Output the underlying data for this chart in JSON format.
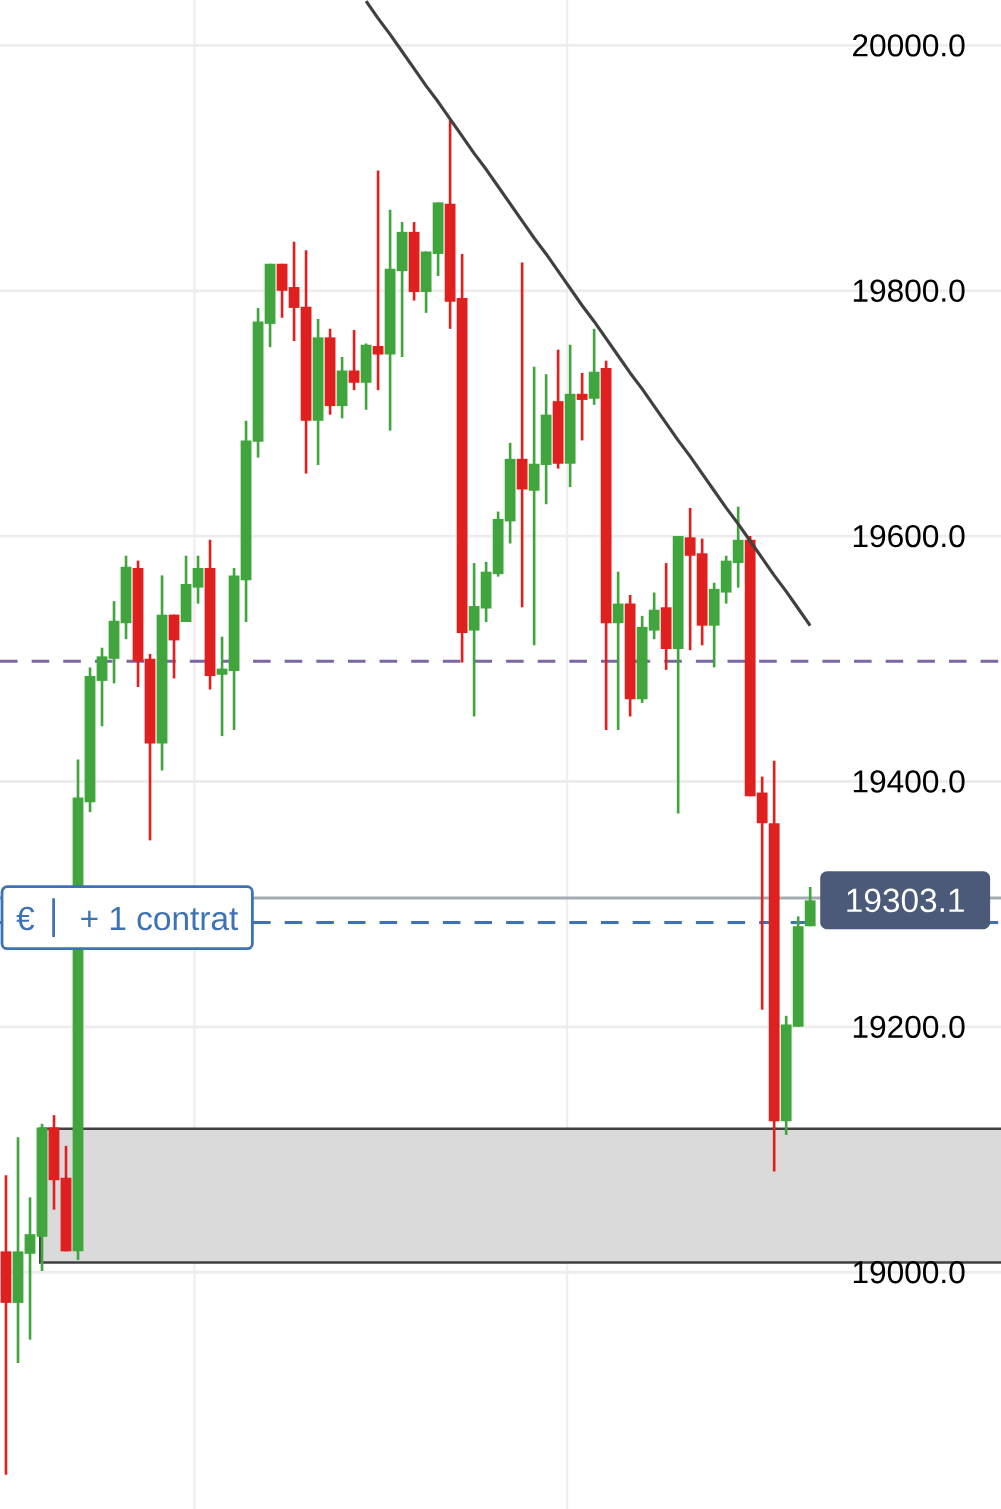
{
  "chart_data": {
    "type": "candlestick",
    "categories": [
      null,
      null,
      null,
      null,
      null,
      null,
      null,
      null,
      null,
      null,
      null,
      null,
      null,
      null,
      null,
      null,
      null,
      null,
      null,
      null,
      null,
      null,
      null,
      null,
      null,
      null,
      null,
      null,
      null,
      null,
      null,
      null,
      null,
      null,
      null,
      null,
      null,
      null,
      null,
      null,
      null,
      null,
      null,
      null,
      null,
      null,
      null,
      null,
      null,
      null,
      null,
      null,
      null,
      null,
      null,
      null,
      null,
      null,
      null,
      null,
      null,
      null,
      null,
      null,
      null,
      null,
      null,
      null
    ],
    "ohlc": [
      [
        19017,
        19079,
        18835,
        18975
      ],
      [
        18975,
        19110,
        18926,
        19017
      ],
      [
        19015,
        19061,
        18945,
        19031
      ],
      [
        19029,
        19121,
        19001,
        19118
      ],
      [
        19118,
        19128,
        19051,
        19075
      ],
      [
        19077,
        19103,
        19017,
        19017
      ],
      [
        19017,
        19418,
        19010,
        19387
      ],
      [
        19383,
        19493,
        19375,
        19486
      ],
      [
        19482,
        19509,
        19445,
        19502
      ],
      [
        19500,
        19547,
        19480,
        19531
      ],
      [
        19529,
        19584,
        19516,
        19575
      ],
      [
        19574,
        19580,
        19477,
        19498
      ],
      [
        19500,
        19504,
        19352,
        19431
      ],
      [
        19431,
        19568,
        19409,
        19536
      ],
      [
        19536,
        19536,
        19484,
        19515
      ],
      [
        19530,
        19584,
        19530,
        19561
      ],
      [
        19558,
        19584,
        19545,
        19574
      ],
      [
        19574,
        19597,
        19475,
        19486
      ],
      [
        19487,
        19518,
        19437,
        19492
      ],
      [
        19490,
        19574,
        19442,
        19568
      ],
      [
        19564,
        19694,
        19530,
        19678
      ],
      [
        19677,
        19786,
        19664,
        19775
      ],
      [
        19773,
        19822,
        19754,
        19822
      ],
      [
        19822,
        19822,
        19778,
        19800
      ],
      [
        19803,
        19840,
        19759,
        19786
      ],
      [
        19787,
        19833,
        19651,
        19694
      ],
      [
        19694,
        19777,
        19658,
        19762
      ],
      [
        19762,
        19769,
        19699,
        19706
      ],
      [
        19706,
        19746,
        19696,
        19735
      ],
      [
        19735,
        19768,
        19719,
        19725
      ],
      [
        19725,
        19757,
        19703,
        19756
      ],
      [
        19755,
        19898,
        19719,
        19748
      ],
      [
        19748,
        19866,
        19686,
        19818
      ],
      [
        19816,
        19856,
        19746,
        19848
      ],
      [
        19848,
        19856,
        19792,
        19799
      ],
      [
        19799,
        19832,
        19782,
        19832
      ],
      [
        19830,
        19872,
        19812,
        19872
      ],
      [
        19871,
        19939,
        19769,
        19791
      ],
      [
        19794,
        19830,
        19497,
        19521
      ],
      [
        19523,
        19578,
        19453,
        19543
      ],
      [
        19541,
        19579,
        19530,
        19571
      ],
      [
        19569,
        19620,
        19567,
        19614
      ],
      [
        19612,
        19676,
        19594,
        19663
      ],
      [
        19663,
        19823,
        19542,
        19638
      ],
      [
        19637,
        19738,
        19511,
        19659
      ],
      [
        19658,
        19732,
        19626,
        19699
      ],
      [
        19710,
        19752,
        19655,
        19659
      ],
      [
        19659,
        19756,
        19640,
        19716
      ],
      [
        19716,
        19733,
        19678,
        19711
      ],
      [
        19712,
        19769,
        19707,
        19734
      ],
      [
        19737,
        19743,
        19442,
        19529
      ],
      [
        19529,
        19571,
        19442,
        19545
      ],
      [
        19545,
        19552,
        19453,
        19467
      ],
      [
        19467,
        19535,
        19464,
        19526
      ],
      [
        19523,
        19554,
        19516,
        19540
      ],
      [
        19542,
        19578,
        19491,
        19508
      ],
      [
        19508,
        19600,
        19374,
        19600
      ],
      [
        19599,
        19623,
        19507,
        19584
      ],
      [
        19586,
        19598,
        19511,
        19527
      ],
      [
        19527,
        19562,
        19493,
        19557
      ],
      [
        19554,
        19584,
        19545,
        19580
      ],
      [
        19578,
        19624,
        19558,
        19597
      ],
      [
        19597,
        19600,
        19388,
        19388
      ],
      [
        19391,
        19404,
        19214,
        19366
      ],
      [
        19366,
        19417,
        19082,
        19123
      ],
      [
        19123,
        19209,
        19112,
        19202
      ],
      [
        19200,
        19290,
        19200,
        19282
      ],
      [
        19282,
        19314,
        19282,
        19303.1
      ]
    ],
    "colors": [
      "#e01f1f",
      "#3fa53c",
      "#3fa53c",
      "#3fa53c",
      "#e01f1f",
      "#e01f1f",
      "#3fa53c",
      "#3fa53c",
      "#3fa53c",
      "#3fa53c",
      "#3fa53c",
      "#e01f1f",
      "#e01f1f",
      "#3fa53c",
      "#e01f1f",
      "#3fa53c",
      "#3fa53c",
      "#e01f1f",
      "#3fa53c",
      "#3fa53c",
      "#3fa53c",
      "#3fa53c",
      "#3fa53c",
      "#e01f1f",
      "#e01f1f",
      "#e01f1f",
      "#3fa53c",
      "#e01f1f",
      "#3fa53c",
      "#e01f1f",
      "#3fa53c",
      "#e01f1f",
      "#3fa53c",
      "#3fa53c",
      "#e01f1f",
      "#3fa53c",
      "#3fa53c",
      "#e01f1f",
      "#e01f1f",
      "#3fa53c",
      "#3fa53c",
      "#3fa53c",
      "#3fa53c",
      "#e01f1f",
      "#3fa53c",
      "#3fa53c",
      "#e01f1f",
      "#3fa53c",
      "#e01f1f",
      "#3fa53c",
      "#e01f1f",
      "#3fa53c",
      "#e01f1f",
      "#3fa53c",
      "#3fa53c",
      "#e01f1f",
      "#3fa53c",
      "#e01f1f",
      "#e01f1f",
      "#3fa53c",
      "#3fa53c",
      "#3fa53c",
      "#e01f1f",
      "#e01f1f",
      "#e01f1f",
      "#3fa53c",
      "#3fa53c",
      "#3fa53c"
    ],
    "series": [
      {
        "type": "line",
        "values": [
          null,
          null,
          null,
          null,
          null,
          null,
          null,
          null,
          null,
          null,
          null,
          null,
          null,
          null,
          null,
          null,
          null,
          null,
          null,
          null,
          null,
          null,
          null,
          null,
          null,
          null,
          null,
          null,
          null,
          null,
          20036,
          20022,
          20009,
          19995,
          19981,
          19967,
          19954,
          19940,
          19926,
          19912,
          19899,
          19885,
          19871,
          19857,
          19843,
          19830,
          19816,
          19802,
          19788,
          19775,
          19761,
          19747,
          19733,
          19720,
          19706,
          19692,
          19678,
          19665,
          19651,
          19637,
          19623,
          19610,
          19596,
          19582,
          19568,
          19555,
          19541,
          19527
        ],
        "color": "#404040"
      }
    ],
    "ylim": [
      18807,
      20037
    ],
    "yticks": [
      {
        "value": 19000,
        "label": "19000.0"
      },
      {
        "value": 19200,
        "label": "19200.0"
      },
      {
        "value": 19400,
        "label": "19400.0"
      },
      {
        "value": 19600,
        "label": "19600.0"
      },
      {
        "value": 19800,
        "label": "19800.0"
      },
      {
        "value": 20000,
        "label": "20000.0"
      }
    ],
    "grid": "y",
    "ref_lines": [
      {
        "axis": "y",
        "value": 19498,
        "color": "#7b65a3",
        "line_style": "dashed"
      },
      {
        "axis": "y",
        "value": 19305,
        "color": "#a3abb3",
        "line_style": "solid"
      },
      {
        "axis": "y",
        "value": 19285,
        "color": "#3d72b4",
        "line_style": "dashed",
        "label": "+ 1 contrat"
      }
    ],
    "bands": [
      {
        "axis": "y",
        "from": 19008,
        "to": 19117,
        "color": "#dadada"
      }
    ],
    "annotations": [
      "€",
      {
        "text": "19303.1",
        "y": 19303.1
      }
    ]
  }
}
